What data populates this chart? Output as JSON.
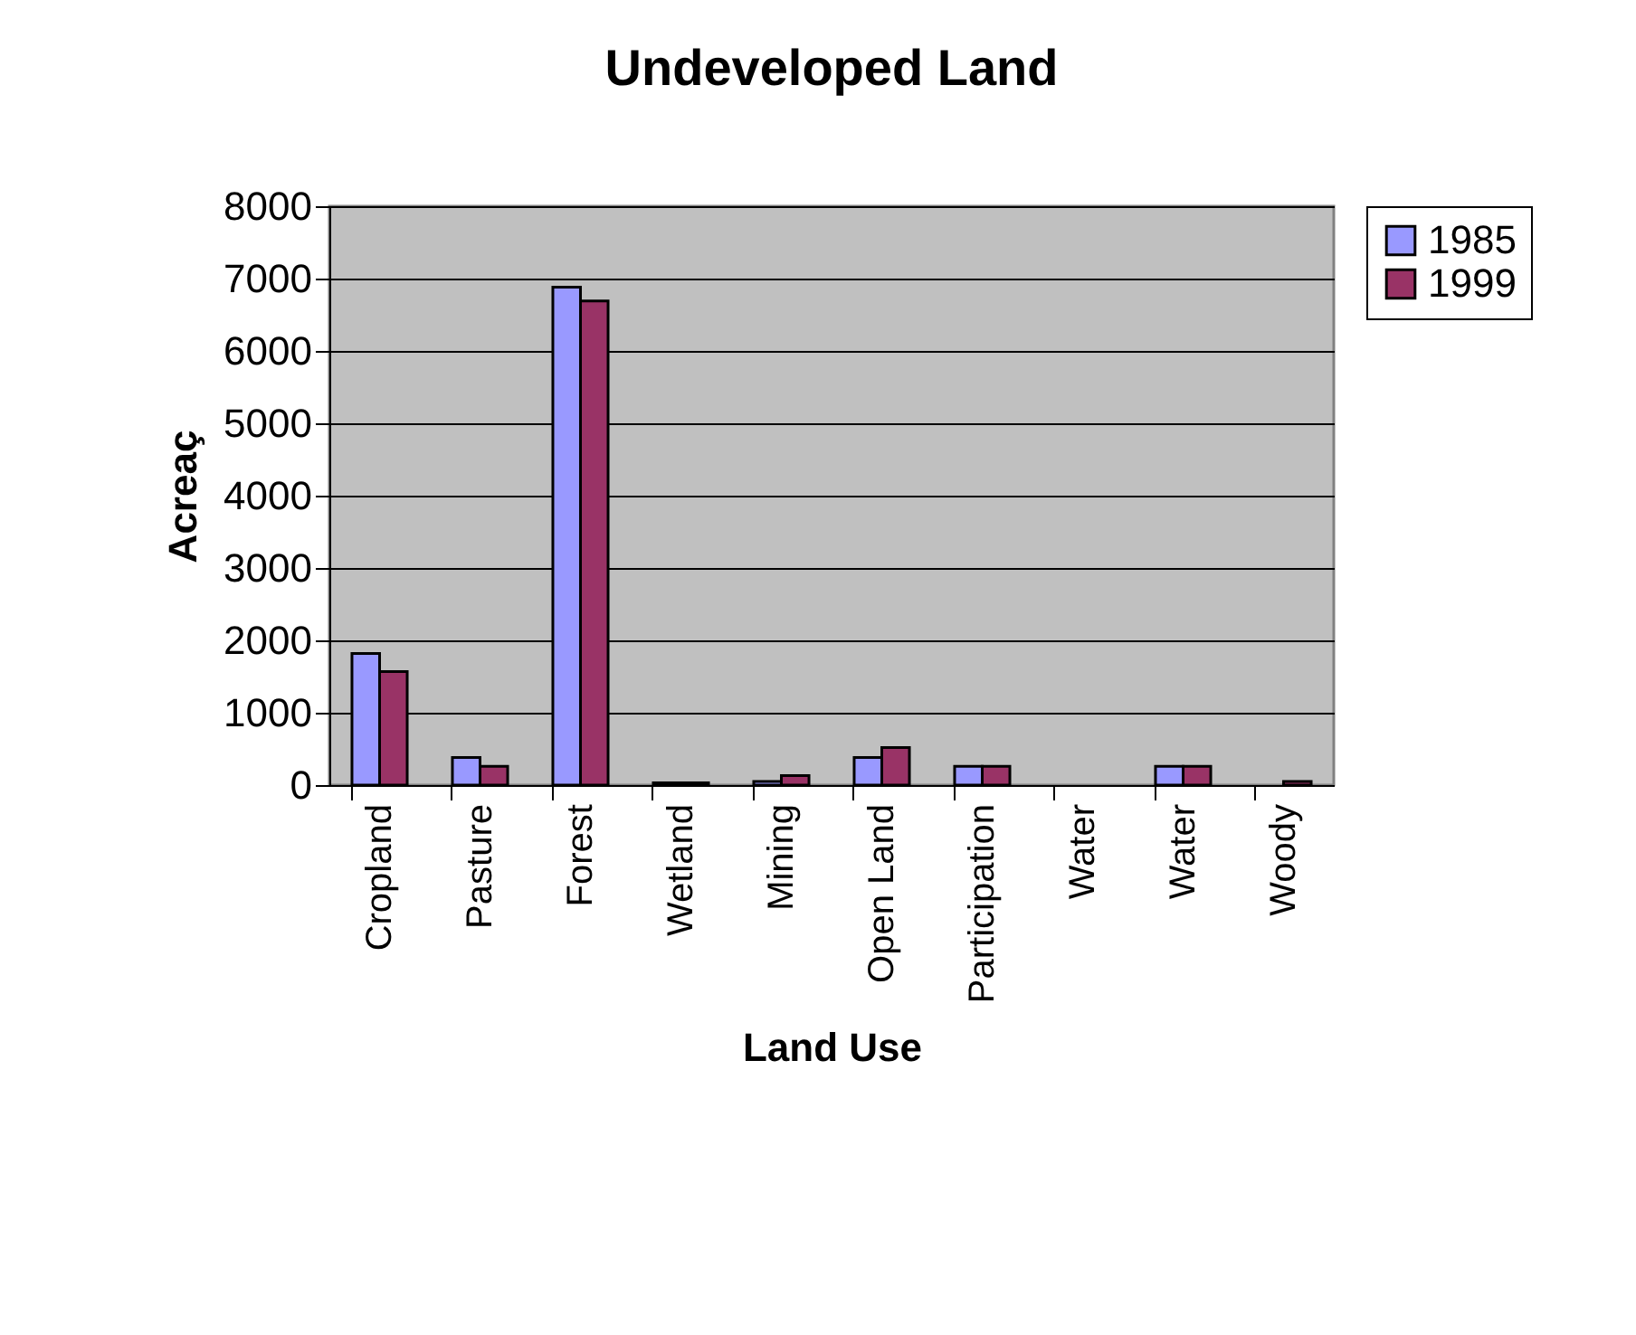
{
  "chart_data": {
    "type": "bar",
    "title": "Undeveloped Land",
    "xlabel": "Land Use",
    "ylabel": "Acreaç",
    "categories": [
      "Cropland",
      "Pasture",
      "Forest",
      "Wetland",
      "Mining",
      "Open Land",
      "Participation",
      "Water",
      "Water",
      "Woody"
    ],
    "series": [
      {
        "name": "1985",
        "color": "#9999ff",
        "values": [
          1820,
          380,
          6880,
          30,
          50,
          380,
          260,
          0,
          260,
          0
        ]
      },
      {
        "name": "1999",
        "color": "#993366",
        "values": [
          1570,
          260,
          6690,
          30,
          130,
          520,
          260,
          0,
          260,
          50
        ]
      }
    ],
    "ylim": [
      0,
      8000
    ],
    "yticks": [
      0,
      1000,
      2000,
      3000,
      4000,
      5000,
      6000,
      7000,
      8000
    ],
    "grid": "y",
    "legend": "right"
  }
}
